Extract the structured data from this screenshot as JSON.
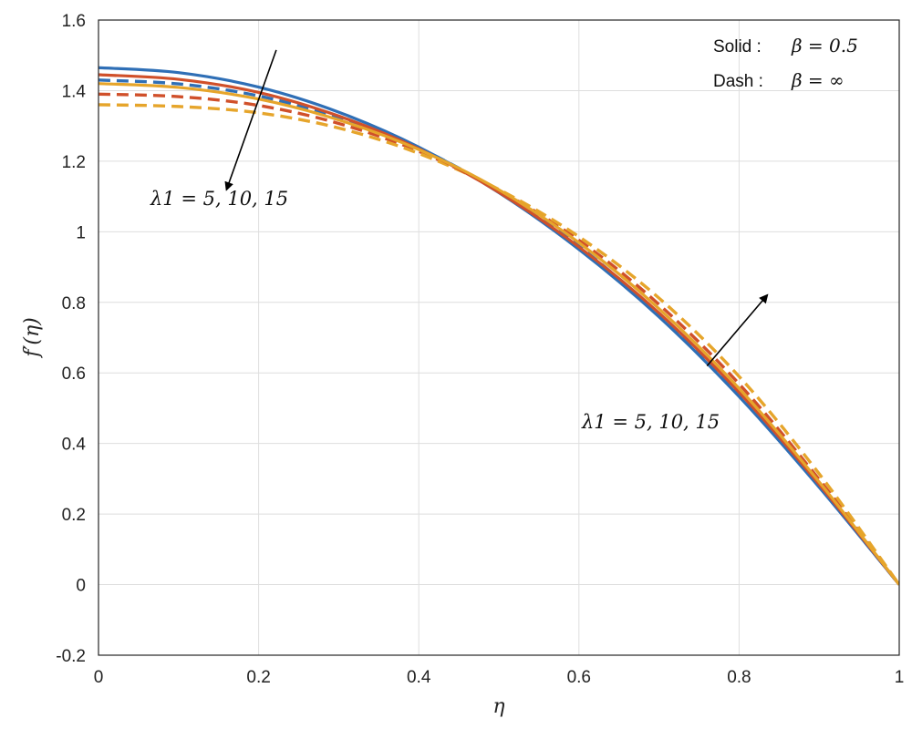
{
  "chart_data": {
    "type": "line",
    "xlabel": "η",
    "ylabel": "f′(η)",
    "xlim": [
      0,
      1
    ],
    "ylim": [
      -0.2,
      1.6
    ],
    "xticks": [
      "0",
      "0.2",
      "0.4",
      "0.6",
      "0.8",
      "1"
    ],
    "yticks": [
      "-0.2",
      "0",
      "0.2",
      "0.4",
      "0.6",
      "0.8",
      "1",
      "1.2",
      "1.4",
      "1.6"
    ],
    "grid": true,
    "legend": {
      "placement": "top-right",
      "solid_label": "Solid :",
      "solid_value": "β = 0.5",
      "dash_label": "Dash :",
      "dash_value": "β = ∞"
    },
    "annotations": [
      {
        "text": "λ1 = 5, 10, 15",
        "arrow_from": [
          0.222,
          1.515
        ],
        "arrow_to": [
          0.16,
          1.12
        ]
      },
      {
        "text": "λ1 = 5, 10, 15",
        "arrow_from": [
          0.76,
          0.62
        ],
        "arrow_to": [
          0.835,
          0.82
        ]
      }
    ],
    "colors": {
      "lambda_5": "#2f6fb6",
      "lambda_10": "#d0502a",
      "lambda_15": "#e6a52b"
    },
    "x": [
      0,
      0.1,
      0.2,
      0.3,
      0.4,
      0.5,
      0.6,
      0.7,
      0.8,
      0.9,
      1.0
    ],
    "series": [
      {
        "style": "solid",
        "lambda": 5,
        "color": "#2f6fb6",
        "values": [
          1.465,
          1.451,
          1.41,
          1.339,
          1.24,
          1.111,
          0.95,
          0.759,
          0.533,
          0.276,
          0.0
        ]
      },
      {
        "style": "solid",
        "lambda": 10,
        "color": "#d0502a",
        "values": [
          1.445,
          1.432,
          1.395,
          1.328,
          1.235,
          1.112,
          0.957,
          0.77,
          0.545,
          0.284,
          0.0
        ]
      },
      {
        "style": "solid",
        "lambda": 15,
        "color": "#e6a52b",
        "values": [
          1.42,
          1.409,
          1.376,
          1.317,
          1.233,
          1.119,
          0.969,
          0.782,
          0.556,
          0.291,
          0.0
        ]
      },
      {
        "style": "dash",
        "lambda": 5,
        "color": "#2f6fb6",
        "values": [
          1.43,
          1.419,
          1.385,
          1.323,
          1.237,
          1.115,
          0.959,
          0.765,
          0.537,
          0.278,
          0.0
        ]
      },
      {
        "style": "dash",
        "lambda": 10,
        "color": "#d0502a",
        "values": [
          1.39,
          1.383,
          1.358,
          1.307,
          1.228,
          1.118,
          0.976,
          0.794,
          0.569,
          0.298,
          0.0
        ]
      },
      {
        "style": "dash",
        "lambda": 15,
        "color": "#e6a52b",
        "values": [
          1.36,
          1.355,
          1.337,
          1.294,
          1.222,
          1.12,
          0.986,
          0.812,
          0.59,
          0.314,
          0.0
        ]
      }
    ]
  }
}
